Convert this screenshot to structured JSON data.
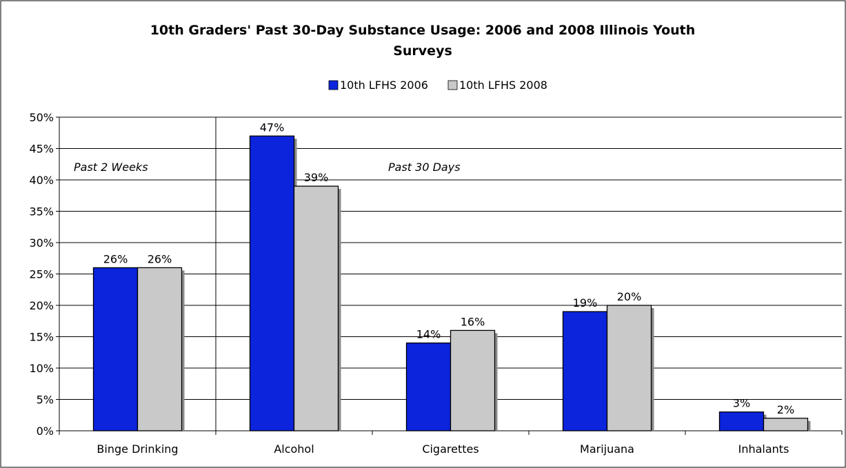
{
  "chart_data": {
    "type": "bar",
    "title_lines": [
      "10th Graders' Past 30-Day Substance Usage:  2006 and 2008 Illinois Youth",
      "Surveys"
    ],
    "categories": [
      "Binge Drinking",
      "Alcohol",
      "Cigarettes",
      "Marijuana",
      "Inhalants"
    ],
    "series": [
      {
        "name": "10th LFHS 2006",
        "values": [
          26,
          47,
          14,
          19,
          3
        ],
        "color": "#0b24dc"
      },
      {
        "name": "10th LFHS 2008",
        "values": [
          26,
          39,
          16,
          20,
          2
        ],
        "color": "#c9c9c9"
      }
    ],
    "data_labels": [
      [
        "26%",
        "47%",
        "14%",
        "19%",
        "3%"
      ],
      [
        "26%",
        "39%",
        "16%",
        "20%",
        "2%"
      ]
    ],
    "y_ticks": [
      "0%",
      "5%",
      "10%",
      "15%",
      "20%",
      "25%",
      "30%",
      "35%",
      "40%",
      "45%",
      "50%"
    ],
    "ylim": [
      0,
      50
    ],
    "y_unit": "%",
    "grid": true,
    "legend_position": "top-center",
    "annotations": [
      {
        "text": "Past 2 Weeks",
        "region": "Binge Drinking"
      },
      {
        "text": "Past 30 Days",
        "region": "Alcohol-Inhalants"
      }
    ],
    "divider_after_category": 0,
    "xlabel": "",
    "ylabel": ""
  }
}
